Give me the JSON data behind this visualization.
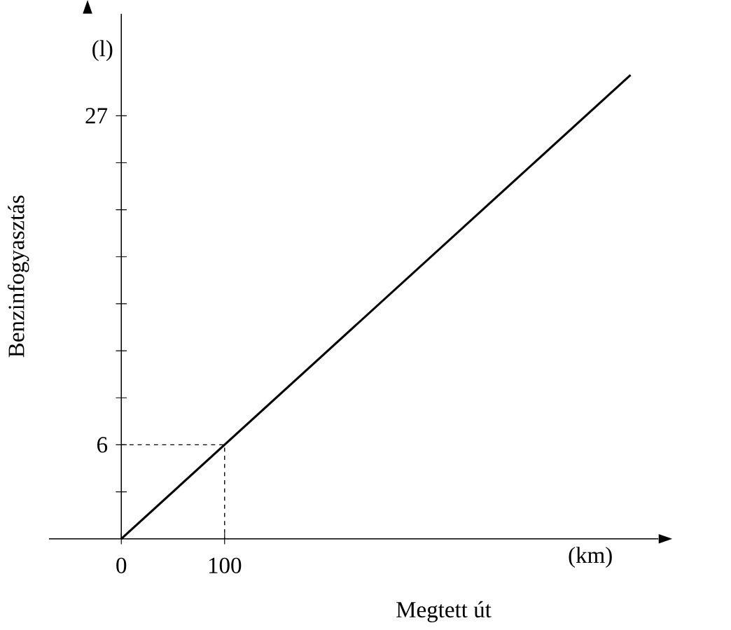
{
  "chart_data": {
    "type": "line",
    "xlabel": "Megtett út",
    "ylabel": "Benzinfogyasztás",
    "annotations": [
      "(l)",
      "(km)"
    ],
    "xlim": [
      -70,
      520
    ],
    "ylim": [
      0,
      33.5
    ],
    "xticks": [
      {
        "value": 0,
        "label": "0"
      },
      {
        "value": 100,
        "label": "100"
      }
    ],
    "yticks": [
      {
        "value": 3,
        "label": null
      },
      {
        "value": 6,
        "label": "6"
      },
      {
        "value": 9,
        "label": null
      },
      {
        "value": 12,
        "label": null
      },
      {
        "value": 15,
        "label": null
      },
      {
        "value": 18,
        "label": null
      },
      {
        "value": 21,
        "label": null
      },
      {
        "value": 24,
        "label": null
      },
      {
        "value": 27,
        "label": "27"
      }
    ],
    "grid": false,
    "series": [
      {
        "color": "#000000",
        "line_style": "solid",
        "x": [
          0,
          493
        ],
        "values": [
          0,
          29.6
        ]
      },
      {
        "color": "#000000",
        "line_style": "dashed",
        "x": [
          0,
          100,
          100
        ],
        "values": [
          6,
          6,
          0
        ]
      }
    ]
  }
}
